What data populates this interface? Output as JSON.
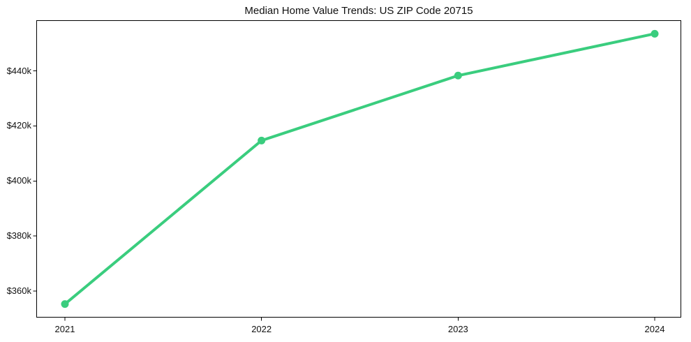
{
  "chart": {
    "title": "Median Home Value Trends: US ZIP Code 20715",
    "background_color": "#ffffff",
    "axis_color": "#000000",
    "text_color": "#111111"
  },
  "chart_data": {
    "type": "line",
    "title": "Median Home Value Trends: US ZIP Code 20715",
    "x": [
      2021,
      2022,
      2023,
      2024
    ],
    "x_tick_labels": [
      "2021",
      "2022",
      "2023",
      "2024"
    ],
    "values": [
      355300,
      414700,
      438300,
      453500
    ],
    "xlabel": "",
    "ylabel": "",
    "ylim": [
      350400,
      458400
    ],
    "yticks": [
      {
        "value": 360000,
        "label": "$360k"
      },
      {
        "value": 380000,
        "label": "$380k"
      },
      {
        "value": 400000,
        "label": "$400k"
      },
      {
        "value": 420000,
        "label": "$420k"
      },
      {
        "value": 440000,
        "label": "$440k"
      }
    ],
    "grid": false,
    "legend": "none",
    "line_color": "#3acd7e"
  }
}
